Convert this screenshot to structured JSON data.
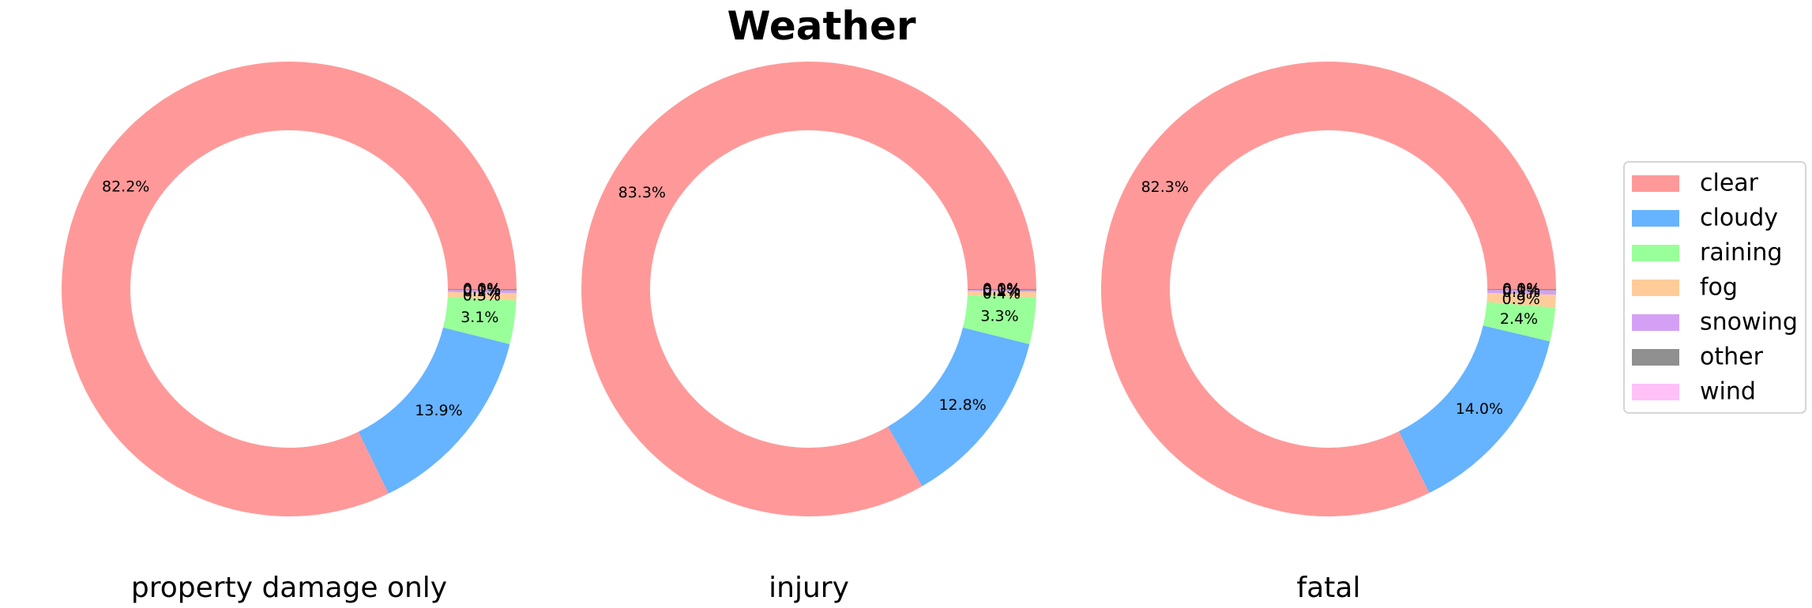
{
  "chart_data": {
    "type": "pie",
    "variant": "donut",
    "title": "Weather",
    "categories": [
      "clear",
      "cloudy",
      "raining",
      "fog",
      "snowing",
      "other",
      "wind"
    ],
    "colors": {
      "clear": "#ff9999",
      "cloudy": "#66b3ff",
      "raining": "#99ff99",
      "fog": "#ffcc99",
      "snowing": "#d4a0f5",
      "other": "#909090",
      "wind": "#ffc0f8"
    },
    "legend_position": "right",
    "series": [
      {
        "name": "property damage only",
        "values": [
          82.2,
          13.9,
          3.1,
          0.5,
          0.2,
          0.1,
          0.0
        ],
        "labels": [
          "82.2%",
          "13.9%",
          "3.1%",
          "0.5%",
          "0.2%",
          "0.1%",
          "0.0%"
        ]
      },
      {
        "name": "injury",
        "values": [
          83.3,
          12.8,
          3.3,
          0.4,
          0.1,
          0.1,
          0.0
        ],
        "labels": [
          "83.3%",
          "12.8%",
          "3.3%",
          "0.4%",
          "0.1%",
          "0.1%",
          "0.0%"
        ]
      },
      {
        "name": "fatal",
        "values": [
          82.3,
          14.0,
          2.4,
          0.9,
          0.3,
          0.1,
          0.0
        ],
        "labels": [
          "82.3%",
          "14.0%",
          "2.4%",
          "0.9%",
          "0.3%",
          "0.1%",
          "0.0%"
        ]
      }
    ]
  }
}
